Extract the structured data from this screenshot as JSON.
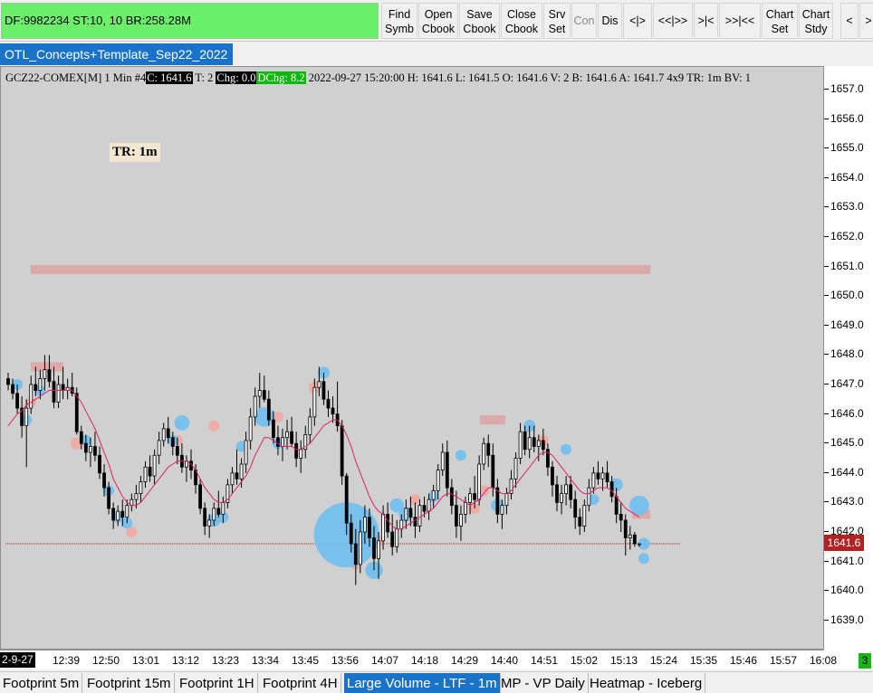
{
  "toolbar": {
    "status": "DF:9982234  ST:10, 10  BR:258.28M",
    "buttons": [
      {
        "label": "Find\nSymb"
      },
      {
        "label": "Open\nCbook"
      },
      {
        "label": "Save\nCbook"
      },
      {
        "label": "Close\nCbook"
      },
      {
        "label": "Srv\nSet"
      },
      {
        "label": "Con",
        "disabled": true
      },
      {
        "label": "Dis"
      },
      {
        "label": "<|>"
      },
      {
        "label": "<<|>>"
      },
      {
        "label": ">|<"
      },
      {
        "label": ">>|<<"
      },
      {
        "label": "Chart\nSet"
      },
      {
        "label": "Chart\nStdy"
      },
      {
        "label": "<"
      },
      {
        "label": ">"
      }
    ]
  },
  "chart_tab": "OTL_Concepts+Template_Sep22_2022",
  "info_line": {
    "symbol": "GCZ22-COMEX[M]  1 Min   #4",
    "close": "C: 1641.6",
    "trades": " T: 2 ",
    "change": "Chg: 0.0",
    "dchange": "DChg: 8.2",
    "rest": " 2022-09-27 15:20:00 H: 1641.6 L: 1641.5 O: 1641.6 V: 2 B: 1641.6 A: 1641.7 4x9 TR: 1m BV: 1"
  },
  "tr_label": "TR: 1m",
  "last_price": "1641.6",
  "date_tag": "2-9-27",
  "corner_badge": "3",
  "colors": {
    "candle": "#000000",
    "moving_average": "#e0206a",
    "buy_bubble": "#6fbfee",
    "sell_bubble": "#f0a8a0",
    "level_zone": "#dca8a8",
    "last_price_line": "#b22222"
  },
  "chart_data": {
    "type": "candlestick",
    "price_ticks": [
      "1657.0",
      "1656.0",
      "1655.0",
      "1654.0",
      "1653.0",
      "1652.0",
      "1651.0",
      "1650.0",
      "1649.0",
      "1648.0",
      "1647.0",
      "1646.0",
      "1645.0",
      "1644.0",
      "1643.0",
      "1642.0",
      "1641.0",
      "1640.0",
      "1639.0"
    ],
    "time_ticks": [
      "12:39",
      "12:50",
      "13:01",
      "13:12",
      "13:23",
      "13:34",
      "13:45",
      "13:56",
      "14:07",
      "14:18",
      "14:29",
      "14:40",
      "14:51",
      "15:02",
      "15:13",
      "15:24",
      "15:35",
      "15:46",
      "15:57",
      "16:08"
    ],
    "ylim": [
      1638.5,
      1657.3
    ],
    "last_price": 1641.6,
    "level_zones": [
      {
        "price": 1650.9,
        "start": "12:29",
        "end": "15:20"
      },
      {
        "price": 1647.6,
        "start": "12:29",
        "end": "12:38"
      },
      {
        "price": 1645.8,
        "start": "14:33",
        "end": "14:40"
      },
      {
        "price": 1642.6,
        "start": "15:15",
        "end": "15:20"
      }
    ],
    "ohlc": [
      [
        1647.2,
        1647.4,
        1646.8,
        1647.0
      ],
      [
        1647.0,
        1647.2,
        1646.5,
        1646.7
      ],
      [
        1646.7,
        1647.0,
        1646.0,
        1646.2
      ],
      [
        1646.2,
        1646.6,
        1645.2,
        1645.6
      ],
      [
        1645.6,
        1646.5,
        1644.2,
        1646.2
      ],
      [
        1646.2,
        1647.3,
        1646.0,
        1647.0
      ],
      [
        1647.0,
        1647.6,
        1646.6,
        1646.8
      ],
      [
        1646.8,
        1647.5,
        1646.5,
        1647.2
      ],
      [
        1647.2,
        1648.0,
        1646.8,
        1647.5
      ],
      [
        1647.5,
        1648.0,
        1646.9,
        1647.1
      ],
      [
        1647.1,
        1647.6,
        1646.2,
        1646.4
      ],
      [
        1646.4,
        1647.3,
        1646.2,
        1647.0
      ],
      [
        1647.0,
        1647.6,
        1646.5,
        1646.8
      ],
      [
        1646.8,
        1647.2,
        1646.5,
        1646.9
      ],
      [
        1646.9,
        1647.4,
        1646.6,
        1646.7
      ],
      [
        1646.7,
        1646.9,
        1645.3,
        1645.4
      ],
      [
        1645.4,
        1645.6,
        1644.8,
        1645.0
      ],
      [
        1645.0,
        1645.3,
        1644.4,
        1644.7
      ],
      [
        1644.7,
        1645.2,
        1644.2,
        1644.9
      ],
      [
        1644.9,
        1645.4,
        1644.4,
        1644.6
      ],
      [
        1644.6,
        1644.9,
        1643.8,
        1644.0
      ],
      [
        1644.0,
        1644.3,
        1643.2,
        1643.5
      ],
      [
        1643.5,
        1643.7,
        1642.6,
        1642.8
      ],
      [
        1642.8,
        1643.0,
        1642.1,
        1642.4
      ],
      [
        1642.4,
        1642.9,
        1642.2,
        1642.7
      ],
      [
        1642.7,
        1643.1,
        1642.2,
        1642.5
      ],
      [
        1642.5,
        1643.1,
        1642.3,
        1642.9
      ],
      [
        1642.9,
        1643.3,
        1642.7,
        1643.1
      ],
      [
        1643.1,
        1643.6,
        1642.8,
        1643.3
      ],
      [
        1643.3,
        1643.9,
        1643.0,
        1643.7
      ],
      [
        1643.7,
        1644.4,
        1643.5,
        1644.2
      ],
      [
        1644.2,
        1644.6,
        1643.7,
        1643.9
      ],
      [
        1643.9,
        1644.8,
        1643.6,
        1644.6
      ],
      [
        1644.6,
        1645.4,
        1644.3,
        1645.1
      ],
      [
        1645.1,
        1645.7,
        1644.9,
        1645.5
      ],
      [
        1645.5,
        1645.9,
        1645.0,
        1645.2
      ],
      [
        1645.2,
        1645.4,
        1644.6,
        1644.9
      ],
      [
        1644.9,
        1645.2,
        1644.3,
        1644.6
      ],
      [
        1644.6,
        1645.0,
        1644.0,
        1644.2
      ],
      [
        1644.2,
        1644.6,
        1643.7,
        1644.4
      ],
      [
        1644.4,
        1644.8,
        1643.8,
        1644.1
      ],
      [
        1644.1,
        1644.3,
        1643.3,
        1643.6
      ],
      [
        1643.6,
        1643.8,
        1642.6,
        1642.8
      ],
      [
        1642.8,
        1643.0,
        1641.9,
        1642.2
      ],
      [
        1642.2,
        1642.6,
        1641.8,
        1642.4
      ],
      [
        1642.4,
        1643.0,
        1642.2,
        1642.8
      ],
      [
        1642.8,
        1643.4,
        1642.5,
        1642.6
      ],
      [
        1642.6,
        1643.2,
        1642.3,
        1643.0
      ],
      [
        1643.0,
        1643.8,
        1642.8,
        1643.6
      ],
      [
        1643.6,
        1644.2,
        1643.3,
        1644.0
      ],
      [
        1644.0,
        1644.8,
        1643.6,
        1643.8
      ],
      [
        1643.8,
        1644.5,
        1643.5,
        1644.3
      ],
      [
        1644.3,
        1645.4,
        1644.0,
        1645.1
      ],
      [
        1645.1,
        1646.2,
        1644.8,
        1645.9
      ],
      [
        1645.9,
        1646.9,
        1645.6,
        1646.6
      ],
      [
        1646.6,
        1647.4,
        1646.2,
        1646.8
      ],
      [
        1646.8,
        1647.3,
        1646.4,
        1646.5
      ],
      [
        1646.5,
        1646.8,
        1645.6,
        1645.8
      ],
      [
        1645.8,
        1646.1,
        1645.0,
        1645.2
      ],
      [
        1645.2,
        1645.6,
        1644.6,
        1644.9
      ],
      [
        1644.9,
        1645.5,
        1644.4,
        1645.2
      ],
      [
        1645.2,
        1645.8,
        1644.8,
        1645.4
      ],
      [
        1645.4,
        1645.9,
        1644.9,
        1645.0
      ],
      [
        1645.0,
        1645.4,
        1644.2,
        1644.5
      ],
      [
        1644.5,
        1645.1,
        1644.0,
        1644.8
      ],
      [
        1644.8,
        1645.6,
        1644.5,
        1645.3
      ],
      [
        1645.3,
        1646.2,
        1645.0,
        1645.9
      ],
      [
        1645.9,
        1647.2,
        1645.6,
        1646.9
      ],
      [
        1646.9,
        1647.6,
        1646.6,
        1647.1
      ],
      [
        1647.1,
        1647.4,
        1646.3,
        1646.5
      ],
      [
        1646.5,
        1646.8,
        1645.9,
        1646.2
      ],
      [
        1646.2,
        1646.6,
        1645.7,
        1646.0
      ],
      [
        1646.0,
        1647.1,
        1645.4,
        1645.6
      ],
      [
        1645.6,
        1645.8,
        1643.6,
        1643.9
      ],
      [
        1643.9,
        1644.0,
        1641.9,
        1642.3
      ],
      [
        1642.3,
        1642.6,
        1641.3,
        1641.6
      ],
      [
        1641.6,
        1642.1,
        1640.2,
        1640.9
      ],
      [
        1640.9,
        1642.4,
        1640.6,
        1642.0
      ],
      [
        1642.0,
        1642.9,
        1641.6,
        1642.5
      ],
      [
        1642.5,
        1642.8,
        1641.5,
        1641.8
      ],
      [
        1641.8,
        1642.2,
        1640.7,
        1641.1
      ],
      [
        1641.1,
        1642.0,
        1640.4,
        1641.7
      ],
      [
        1641.7,
        1642.9,
        1641.4,
        1642.6
      ],
      [
        1642.6,
        1643.0,
        1641.8,
        1642.0
      ],
      [
        1642.0,
        1642.6,
        1641.2,
        1641.5
      ],
      [
        1641.5,
        1642.4,
        1641.3,
        1642.1
      ],
      [
        1642.1,
        1642.6,
        1641.8,
        1642.4
      ],
      [
        1642.4,
        1643.1,
        1642.1,
        1642.8
      ],
      [
        1642.8,
        1643.2,
        1642.2,
        1642.5
      ],
      [
        1642.5,
        1643.0,
        1641.8,
        1642.2
      ],
      [
        1642.2,
        1643.1,
        1642.0,
        1642.9
      ],
      [
        1642.9,
        1643.2,
        1642.5,
        1642.7
      ],
      [
        1642.7,
        1643.3,
        1642.4,
        1643.1
      ],
      [
        1643.1,
        1643.6,
        1642.8,
        1643.4
      ],
      [
        1643.4,
        1644.3,
        1643.1,
        1644.1
      ],
      [
        1644.1,
        1645.0,
        1643.9,
        1644.7
      ],
      [
        1644.7,
        1645.1,
        1643.2,
        1643.5
      ],
      [
        1643.5,
        1643.8,
        1642.6,
        1642.9
      ],
      [
        1642.9,
        1643.4,
        1641.8,
        1642.2
      ],
      [
        1642.2,
        1642.9,
        1641.7,
        1642.6
      ],
      [
        1642.6,
        1643.2,
        1642.3,
        1643.0
      ],
      [
        1643.0,
        1643.5,
        1642.6,
        1643.3
      ],
      [
        1643.3,
        1643.9,
        1642.8,
        1643.1
      ],
      [
        1643.1,
        1644.6,
        1642.9,
        1644.3
      ],
      [
        1644.3,
        1645.2,
        1644.1,
        1645.0
      ],
      [
        1645.0,
        1645.3,
        1644.2,
        1644.6
      ],
      [
        1644.6,
        1645.0,
        1643.2,
        1643.5
      ],
      [
        1643.5,
        1643.8,
        1642.3,
        1642.6
      ],
      [
        1642.6,
        1643.1,
        1642.1,
        1642.9
      ],
      [
        1642.9,
        1643.5,
        1642.6,
        1643.3
      ],
      [
        1643.3,
        1644.1,
        1643.1,
        1643.8
      ],
      [
        1643.8,
        1644.7,
        1643.5,
        1644.5
      ],
      [
        1644.5,
        1645.7,
        1644.3,
        1645.4
      ],
      [
        1645.4,
        1645.6,
        1644.6,
        1644.8
      ],
      [
        1644.8,
        1645.6,
        1644.5,
        1645.2
      ],
      [
        1645.2,
        1645.6,
        1644.7,
        1644.9
      ],
      [
        1644.9,
        1645.3,
        1644.4,
        1645.1
      ],
      [
        1645.1,
        1645.5,
        1644.6,
        1644.8
      ],
      [
        1644.8,
        1645.0,
        1643.9,
        1644.2
      ],
      [
        1644.2,
        1644.4,
        1643.2,
        1643.6
      ],
      [
        1643.6,
        1643.9,
        1642.7,
        1643.0
      ],
      [
        1643.0,
        1643.6,
        1642.6,
        1643.3
      ],
      [
        1643.3,
        1643.9,
        1642.9,
        1643.6
      ],
      [
        1643.6,
        1643.9,
        1642.8,
        1643.1
      ],
      [
        1643.1,
        1643.4,
        1642.1,
        1642.5
      ],
      [
        1642.5,
        1642.8,
        1641.9,
        1642.2
      ],
      [
        1642.2,
        1643.1,
        1642.0,
        1642.9
      ],
      [
        1642.9,
        1643.8,
        1642.7,
        1643.5
      ],
      [
        1643.5,
        1644.2,
        1643.3,
        1644.0
      ],
      [
        1644.0,
        1644.4,
        1643.6,
        1643.8
      ],
      [
        1643.8,
        1644.2,
        1643.4,
        1644.0
      ],
      [
        1644.0,
        1644.4,
        1643.5,
        1643.7
      ],
      [
        1643.7,
        1643.9,
        1643.0,
        1643.2
      ],
      [
        1643.2,
        1643.5,
        1642.3,
        1642.6
      ],
      [
        1642.6,
        1643.0,
        1642.0,
        1642.4
      ],
      [
        1642.4,
        1642.6,
        1641.2,
        1641.8
      ],
      [
        1641.8,
        1642.2,
        1641.4,
        1641.9
      ],
      [
        1641.9,
        1642.0,
        1641.5,
        1641.6
      ],
      [
        1641.6,
        1641.6,
        1641.5,
        1641.6
      ]
    ],
    "moving_average": [
      1645.6,
      1645.8,
      1646.0,
      1646.1,
      1646.3,
      1646.4,
      1646.5,
      1646.6,
      1646.7,
      1646.8,
      1646.8,
      1646.8,
      1646.8,
      1646.8,
      1646.8,
      1646.6,
      1646.4,
      1646.1,
      1645.8,
      1645.5,
      1645.1,
      1644.7,
      1644.3,
      1643.8,
      1643.5,
      1643.2,
      1643.0,
      1642.9,
      1642.9,
      1643.0,
      1643.2,
      1643.4,
      1643.6,
      1643.8,
      1644.0,
      1644.2,
      1644.3,
      1644.4,
      1644.4,
      1644.4,
      1644.3,
      1644.1,
      1643.8,
      1643.5,
      1643.3,
      1643.1,
      1643.0,
      1643.0,
      1643.1,
      1643.3,
      1643.5,
      1643.7,
      1643.9,
      1644.2,
      1644.6,
      1644.9,
      1645.2,
      1645.2,
      1645.1,
      1645.0,
      1644.9,
      1644.9,
      1644.9,
      1644.8,
      1644.8,
      1644.9,
      1645.0,
      1645.2,
      1645.4,
      1645.6,
      1645.7,
      1645.8,
      1645.8,
      1645.6,
      1645.3,
      1644.9,
      1644.4,
      1644.0,
      1643.6,
      1643.2,
      1642.9,
      1642.7,
      1642.6,
      1642.4,
      1642.2,
      1642.1,
      1642.1,
      1642.2,
      1642.3,
      1642.4,
      1642.5,
      1642.6,
      1642.7,
      1642.8,
      1643.0,
      1643.2,
      1643.3,
      1643.3,
      1643.2,
      1643.1,
      1643.0,
      1642.9,
      1643.0,
      1643.1,
      1643.3,
      1643.5,
      1643.5,
      1643.4,
      1643.3,
      1643.3,
      1643.4,
      1643.6,
      1643.8,
      1644.0,
      1644.2,
      1644.4,
      1644.6,
      1644.7,
      1644.7,
      1644.6,
      1644.4,
      1644.2,
      1644.0,
      1643.8,
      1643.6,
      1643.4,
      1643.3,
      1643.3,
      1643.4,
      1643.5,
      1643.5,
      1643.5,
      1643.4,
      1643.2,
      1643.0,
      1642.8,
      1642.7,
      1642.6,
      1642.5
    ],
    "buy_bubbles": [
      {
        "bar": 2,
        "price": 1647.0,
        "size": 1
      },
      {
        "bar": 4,
        "price": 1645.8,
        "size": 1
      },
      {
        "bar": 7,
        "price": 1646.8,
        "size": 1
      },
      {
        "bar": 17,
        "price": 1645.1,
        "size": 1
      },
      {
        "bar": 22,
        "price": 1643.4,
        "size": 1
      },
      {
        "bar": 24,
        "price": 1642.5,
        "size": 1
      },
      {
        "bar": 26,
        "price": 1642.3,
        "size": 1
      },
      {
        "bar": 36,
        "price": 1645.1,
        "size": 1
      },
      {
        "bar": 38,
        "price": 1645.7,
        "size": 1.4
      },
      {
        "bar": 45,
        "price": 1642.4,
        "size": 1.2
      },
      {
        "bar": 47,
        "price": 1642.5,
        "size": 1
      },
      {
        "bar": 51,
        "price": 1644.9,
        "size": 1
      },
      {
        "bar": 56,
        "price": 1645.9,
        "size": 1.8
      },
      {
        "bar": 59,
        "price": 1645.0,
        "size": 1
      },
      {
        "bar": 69,
        "price": 1647.4,
        "size": 1.1
      },
      {
        "bar": 74,
        "price": 1641.9,
        "size": 6.0
      },
      {
        "bar": 80,
        "price": 1640.7,
        "size": 1.6
      },
      {
        "bar": 85,
        "price": 1642.9,
        "size": 1.3
      },
      {
        "bar": 87,
        "price": 1642.6,
        "size": 1.3
      },
      {
        "bar": 93,
        "price": 1643.2,
        "size": 1
      },
      {
        "bar": 99,
        "price": 1644.6,
        "size": 1
      },
      {
        "bar": 107,
        "price": 1642.9,
        "size": 1.2
      },
      {
        "bar": 114,
        "price": 1645.6,
        "size": 1.1
      },
      {
        "bar": 122,
        "price": 1644.8,
        "size": 1
      },
      {
        "bar": 128,
        "price": 1643.1,
        "size": 1
      },
      {
        "bar": 133,
        "price": 1643.6,
        "size": 1.2
      },
      {
        "bar": 138,
        "price": 1642.9,
        "size": 1.8
      },
      {
        "bar": 139,
        "price": 1641.6,
        "size": 1.1
      },
      {
        "bar": 139,
        "price": 1641.1,
        "size": 1
      }
    ],
    "sell_bubbles": [
      {
        "bar": 5,
        "price": 1646.4,
        "size": 1
      },
      {
        "bar": 15,
        "price": 1645.0,
        "size": 1.1
      },
      {
        "bar": 27,
        "price": 1642.0,
        "size": 1
      },
      {
        "bar": 37,
        "price": 1645.1,
        "size": 1
      },
      {
        "bar": 45,
        "price": 1645.6,
        "size": 1
      },
      {
        "bar": 59,
        "price": 1645.9,
        "size": 1
      },
      {
        "bar": 67,
        "price": 1646.9,
        "size": 1.1
      },
      {
        "bar": 76,
        "price": 1640.9,
        "size": 1
      },
      {
        "bar": 81,
        "price": 1641.7,
        "size": 1
      },
      {
        "bar": 89,
        "price": 1643.1,
        "size": 1
      },
      {
        "bar": 102,
        "price": 1642.8,
        "size": 1
      },
      {
        "bar": 104,
        "price": 1643.4,
        "size": 1
      },
      {
        "bar": 117,
        "price": 1645.1,
        "size": 1
      }
    ]
  },
  "bottom_tabs": [
    {
      "label": "Footprint 5m"
    },
    {
      "label": "Footprint 15m"
    },
    {
      "label": "Footprint 1H"
    },
    {
      "label": "Footprint 4H"
    },
    {
      "label": "Large Volume - LTF - 1m",
      "active": true
    },
    {
      "label": "MP - VP Daily"
    },
    {
      "label": "Heatmap - Iceberg"
    }
  ]
}
